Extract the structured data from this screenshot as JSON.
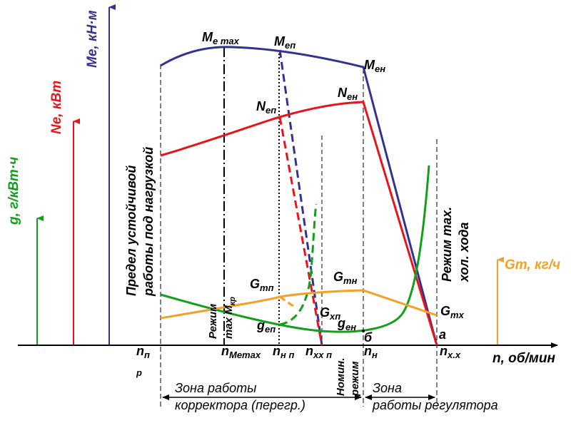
{
  "colors": {
    "moment": "#33338f",
    "power": "#e8141b",
    "specific_fuel": "#12a01c",
    "hourly_fuel": "#f5a024",
    "axis": "#000000"
  },
  "axes": {
    "x": {
      "label": "n, об/мин"
    },
    "g": {
      "label": "g, г/кВт·ч"
    },
    "ne": {
      "label": "Ne, кВт"
    },
    "me": {
      "label": "Me, кН·м"
    },
    "gt": {
      "label": "Gт, кг/ч"
    }
  },
  "curve_labels": {
    "me_max": {
      "main": "M",
      "sub": "e max"
    },
    "men_p": {
      "main": "M",
      "sub": "еп"
    },
    "men_n": {
      "main": "M",
      "sub": "ен"
    },
    "nen_p": {
      "main": "N",
      "sub": "еп"
    },
    "nen_n": {
      "main": "N",
      "sub": "ен"
    },
    "gtp": {
      "main": "G",
      "sub": "тп"
    },
    "gtn": {
      "main": "G",
      "sub": "тн"
    },
    "gtx": {
      "main": "G",
      "sub": "тх"
    },
    "gxp": {
      "main": "G",
      "sub": "хп"
    },
    "gep": {
      "main": "g",
      "sub": "еп"
    },
    "gen": {
      "main": "g",
      "sub": "ен"
    }
  },
  "point_labels": {
    "b": "б",
    "a": "а"
  },
  "x_ticks": {
    "np": {
      "main": "n",
      "sub": "п"
    },
    "np_extra": "р",
    "nmemax": {
      "main": "n",
      "sub": "Memax"
    },
    "nnp": {
      "main": "n",
      "sub": "н п"
    },
    "nxxp": {
      "main": "n",
      "sub": "хх п"
    },
    "nn": {
      "main": "n",
      "sub": "н"
    },
    "nxx": {
      "main": "n",
      "sub": "х.х"
    }
  },
  "vertical_notes": {
    "stability_line1": "Предел устойчивой",
    "stability_line2": "работы под нагрузкой",
    "mode_mmax_line1": "Режим",
    "mode_mmax_line2": "max M",
    "mode_mmax_sub": "кр",
    "nominal_line1": "Номин.",
    "nominal_line2": "режим",
    "idle_line1": "Режим max.",
    "idle_line2": "хол. хода"
  },
  "zones": {
    "corrector_line1": "Зона работы",
    "corrector_line2": "корректора (перегр.)",
    "regulator_line1": "Зона",
    "regulator_line2": "работы регулятора"
  }
}
